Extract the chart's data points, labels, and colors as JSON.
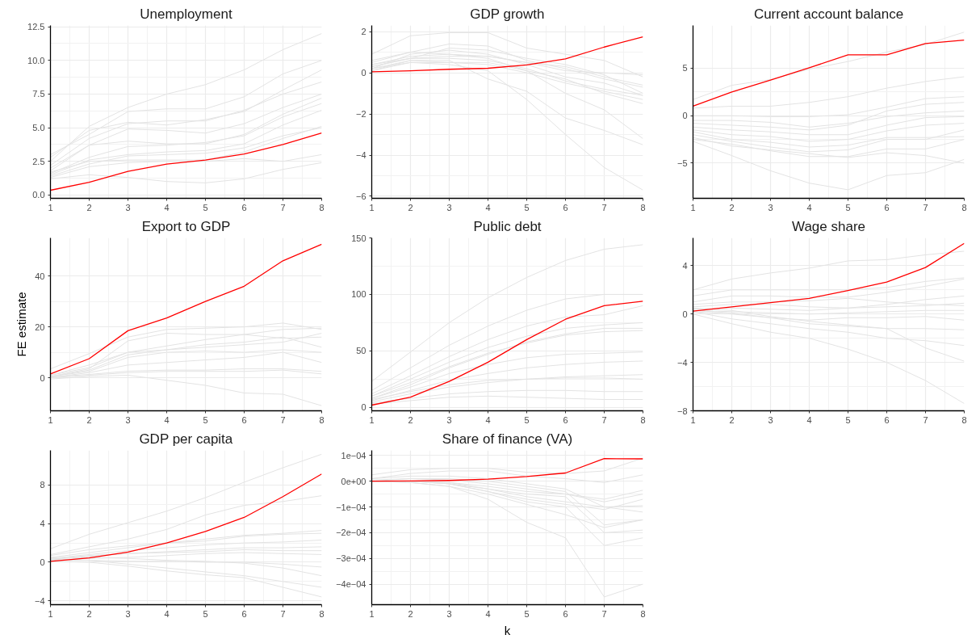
{
  "chart_data": [
    {
      "type": "line",
      "title": "Unemployment",
      "x": [
        1,
        2,
        3,
        4,
        5,
        6,
        7,
        8
      ],
      "xlim": [
        1,
        8
      ],
      "xticks": [
        1,
        2,
        3,
        4,
        5,
        6,
        7,
        8
      ],
      "ylim": [
        -0.25,
        12.6
      ],
      "yticks": [
        {
          "value": 0,
          "label": "0.0"
        },
        {
          "value": 2.5,
          "label": "2.5"
        },
        {
          "value": 5,
          "label": "5.0"
        },
        {
          "value": 7.5,
          "label": "7.5"
        },
        {
          "value": 10,
          "label": "10.0"
        },
        {
          "value": 12.5,
          "label": "12.5"
        }
      ],
      "grid": true,
      "series": [
        {
          "color": "#e3e3e3",
          "values": [
            1.7,
            2.5,
            2.6,
            2.6,
            2.6,
            3.2,
            4.2,
            5.1
          ]
        },
        {
          "color": "#e3e3e3",
          "values": [
            1.8,
            3.7,
            4.0,
            3.8,
            3.8,
            4.5,
            6.0,
            7.2
          ]
        },
        {
          "color": "#e3e3e3",
          "values": [
            2.0,
            3.7,
            4.9,
            4.8,
            4.6,
            5.3,
            6.5,
            7.5
          ]
        },
        {
          "color": "#e3e3e3",
          "values": [
            2.5,
            5.1,
            6.5,
            7.5,
            8.2,
            9.3,
            10.8,
            12.0
          ]
        },
        {
          "color": "#e3e3e3",
          "values": [
            3.0,
            4.5,
            6.2,
            6.4,
            6.4,
            7.3,
            9.0,
            10.0
          ]
        },
        {
          "color": "#e3e3e3",
          "values": [
            1.2,
            1.5,
            1.3,
            1.0,
            0.9,
            1.2,
            1.9,
            2.4
          ]
        },
        {
          "color": "#e3e3e3",
          "values": [
            1.3,
            2.1,
            2.4,
            2.5,
            2.5,
            2.7,
            2.5,
            3.0
          ]
        },
        {
          "color": "#e3e3e3",
          "values": [
            1.5,
            2.6,
            3.0,
            3.2,
            3.3,
            3.8,
            5.2,
            6.3
          ]
        },
        {
          "color": "#e3e3e3",
          "values": [
            2.2,
            4.2,
            5.3,
            5.5,
            5.5,
            6.3,
            7.5,
            8.4
          ]
        },
        {
          "color": "#e3e3e3",
          "values": [
            1.6,
            2.8,
            3.6,
            3.7,
            3.9,
            4.4,
            5.8,
            6.8
          ]
        },
        {
          "color": "#e3e3e3",
          "values": [
            1.4,
            2.3,
            2.9,
            3.0,
            3.1,
            3.5,
            4.4,
            5.0
          ]
        },
        {
          "color": "#e3e3e3",
          "values": [
            2.8,
            4.8,
            5.4,
            5.2,
            5.6,
            6.2,
            7.8,
            9.3
          ]
        },
        {
          "color": "#ff0000",
          "values": [
            0.35,
            0.95,
            1.75,
            2.3,
            2.6,
            3.05,
            3.75,
            4.6
          ]
        }
      ]
    },
    {
      "type": "line",
      "title": "GDP growth",
      "x": [
        1,
        2,
        3,
        4,
        5,
        6,
        7,
        8
      ],
      "xlim": [
        1,
        8
      ],
      "xticks": [
        1,
        2,
        3,
        4,
        5,
        6,
        7,
        8
      ],
      "ylim": [
        -6.1,
        2.3
      ],
      "yticks": [
        {
          "value": -6,
          "label": "−6"
        },
        {
          "value": -4,
          "label": "−4"
        },
        {
          "value": -2,
          "label": "−2"
        },
        0,
        2
      ],
      "grid": true,
      "series": [
        {
          "color": "#e3e3e3",
          "values": [
            0.9,
            1.8,
            1.95,
            1.95,
            1.2,
            0.9,
            0.6,
            -0.2
          ]
        },
        {
          "color": "#e3e3e3",
          "values": [
            0.5,
            1.0,
            1.4,
            1.3,
            0.6,
            0.2,
            -0.3,
            -0.7
          ]
        },
        {
          "color": "#e3e3e3",
          "values": [
            0.3,
            0.7,
            0.7,
            0.6,
            0.2,
            -0.4,
            -0.8,
            -1.1
          ]
        },
        {
          "color": "#e3e3e3",
          "values": [
            0.2,
            0.6,
            0.5,
            0.4,
            0,
            -0.5,
            -0.9,
            -1.3
          ]
        },
        {
          "color": "#e3e3e3",
          "values": [
            0.1,
            0.5,
            0.4,
            0.1,
            -1.3,
            -3.0,
            -4.6,
            -5.7
          ]
        },
        {
          "color": "#e3e3e3",
          "values": [
            0.4,
            0.8,
            0.9,
            0.7,
            0.1,
            -1.0,
            -1.8,
            -3.2
          ]
        },
        {
          "color": "#e3e3e3",
          "values": [
            0.2,
            0.9,
            1.1,
            0.9,
            0.4,
            -0.2,
            -0.5,
            -1.1
          ]
        },
        {
          "color": "#e3e3e3",
          "values": [
            0.6,
            1.0,
            0.9,
            0.8,
            0.5,
            0.1,
            0,
            -0.1
          ]
        },
        {
          "color": "#e3e3e3",
          "values": [
            0.1,
            0.6,
            0.6,
            -0.3,
            -0.9,
            -2.2,
            -2.8,
            -3.5
          ]
        },
        {
          "color": "#e3e3e3",
          "values": [
            0.3,
            0.7,
            0.8,
            0.8,
            0.5,
            0.3,
            -0.2,
            -0.6
          ]
        },
        {
          "color": "#e3e3e3",
          "values": [
            0.2,
            0.5,
            0.5,
            0.5,
            0.1,
            -0.3,
            -1.0,
            -1.5
          ]
        },
        {
          "color": "#e3e3e3",
          "values": [
            0.4,
            0.7,
            1.2,
            1.1,
            0.7,
            0.4,
            -0.1,
            -1.0
          ]
        },
        {
          "color": "#ff0000",
          "values": [
            0.05,
            0.1,
            0.17,
            0.22,
            0.38,
            0.68,
            1.25,
            1.75
          ]
        }
      ]
    },
    {
      "type": "line",
      "title": "Current account balance",
      "x": [
        1,
        2,
        3,
        4,
        5,
        6,
        7,
        8
      ],
      "xlim": [
        1,
        8
      ],
      "xticks": [
        1,
        2,
        3,
        4,
        5,
        6,
        7,
        8
      ],
      "ylim": [
        -8.7,
        9.5
      ],
      "yticks": [
        {
          "value": -5,
          "label": "−5"
        },
        0,
        5
      ],
      "grid": true,
      "series": [
        {
          "color": "#e3e3e3",
          "values": [
            1.7,
            3.2,
            3.8,
            4.9,
            5.7,
            6.7,
            7.5,
            8.8
          ]
        },
        {
          "color": "#e3e3e3",
          "values": [
            0.8,
            1.0,
            1.0,
            1.4,
            2.0,
            2.9,
            3.6,
            4.1
          ]
        },
        {
          "color": "#e3e3e3",
          "values": [
            0,
            0,
            -0.1,
            -0.1,
            0.1,
            0.9,
            1.8,
            2.0
          ]
        },
        {
          "color": "#e3e3e3",
          "values": [
            -0.5,
            -0.5,
            -0.7,
            -1.2,
            -0.8,
            -0.1,
            0.3,
            0.5
          ]
        },
        {
          "color": "#e3e3e3",
          "values": [
            -0.8,
            -1.0,
            -1.2,
            -1.5,
            -1.0,
            0.5,
            1.2,
            1.4
          ]
        },
        {
          "color": "#e3e3e3",
          "values": [
            -1.2,
            -1.5,
            -1.7,
            -2.0,
            -2.0,
            -1.0,
            -0.2,
            -0.1
          ]
        },
        {
          "color": "#e3e3e3",
          "values": [
            -1.7,
            -2.5,
            -2.8,
            -3.3,
            -3.1,
            -2.3,
            -2.3,
            -2.2
          ]
        },
        {
          "color": "#e3e3e3",
          "values": [
            -2.0,
            -2.7,
            -3.3,
            -3.8,
            -3.6,
            -2.5,
            -2.5,
            -1.5
          ]
        },
        {
          "color": "#e3e3e3",
          "values": [
            -2.5,
            -3.0,
            -3.7,
            -4.3,
            -4.3,
            -3.5,
            -3.5,
            -2.5
          ]
        },
        {
          "color": "#e3e3e3",
          "values": [
            -2.7,
            -4.2,
            -5.8,
            -7.1,
            -7.8,
            -6.3,
            -6.0,
            -4.6
          ]
        },
        {
          "color": "#e3e3e3",
          "values": [
            -2.3,
            -3.2,
            -3.6,
            -4.0,
            -4.4,
            -3.9,
            -4.2,
            -5.0
          ]
        },
        {
          "color": "#e3e3e3",
          "values": [
            -1.5,
            -2.0,
            -2.2,
            -2.7,
            -2.5,
            -1.6,
            -1.0,
            -0.8
          ]
        },
        {
          "color": "#ff0000",
          "values": [
            1.0,
            2.5,
            3.75,
            5.05,
            6.4,
            6.4,
            7.6,
            7.95
          ]
        }
      ]
    },
    {
      "type": "line",
      "title": "Export to GDP",
      "ylabel": "FE estimate",
      "x": [
        1,
        2,
        3,
        4,
        5,
        6,
        7,
        8
      ],
      "xlim": [
        1,
        8
      ],
      "xticks": [
        1,
        2,
        3,
        4,
        5,
        6,
        7,
        8
      ],
      "ylim": [
        -13,
        55
      ],
      "yticks": [
        0,
        20,
        40
      ],
      "grid": true,
      "series": [
        {
          "color": "#e3e3e3",
          "values": [
            3.5,
            9.5,
            16,
            19,
            19.5,
            20,
            21.5,
            19
          ]
        },
        {
          "color": "#e3e3e3",
          "values": [
            1,
            5,
            10,
            12.5,
            15,
            17,
            19,
            19.5
          ]
        },
        {
          "color": "#e3e3e3",
          "values": [
            0.5,
            3,
            9,
            11,
            13,
            14,
            16,
            12
          ]
        },
        {
          "color": "#e3e3e3",
          "values": [
            0.5,
            2.5,
            8,
            10,
            10.5,
            10,
            11,
            10
          ]
        },
        {
          "color": "#e3e3e3",
          "values": [
            0.1,
            2,
            5,
            6,
            7,
            8,
            10,
            6
          ]
        },
        {
          "color": "#e3e3e3",
          "values": [
            0,
            1,
            2,
            2.5,
            2.5,
            2.5,
            3,
            1.5
          ]
        },
        {
          "color": "#e3e3e3",
          "values": [
            -0.5,
            0.5,
            1,
            -1,
            -3,
            -6,
            -6.5,
            -11
          ]
        },
        {
          "color": "#e3e3e3",
          "values": [
            0.5,
            3.5,
            14.5,
            17.5,
            17,
            17,
            15.5,
            16
          ]
        },
        {
          "color": "#e3e3e3",
          "values": [
            0.3,
            1.3,
            2.6,
            3,
            3,
            3.5,
            3.5,
            2.5
          ]
        },
        {
          "color": "#e3e3e3",
          "values": [
            1,
            4,
            10,
            11,
            12,
            13,
            14,
            17.5
          ]
        },
        {
          "color": "#ff0000",
          "values": [
            1.5,
            7.5,
            18.5,
            23.5,
            30,
            36,
            46,
            52.5
          ]
        }
      ]
    },
    {
      "type": "line",
      "title": "Public debt",
      "x": [
        1,
        2,
        3,
        4,
        5,
        6,
        7,
        8
      ],
      "xlim": [
        1,
        8
      ],
      "xticks": [
        1,
        2,
        3,
        4,
        5,
        6,
        7,
        8
      ],
      "ylim": [
        -3,
        150
      ],
      "yticks": [
        0,
        50,
        100,
        150
      ],
      "grid": true,
      "series": [
        {
          "color": "#e3e3e3",
          "values": [
            23,
            49,
            75,
            97,
            115,
            130,
            140,
            144
          ]
        },
        {
          "color": "#e3e3e3",
          "values": [
            15,
            35,
            55,
            72,
            86,
            96,
            100,
            100
          ]
        },
        {
          "color": "#e3e3e3",
          "values": [
            12,
            28,
            45,
            60,
            72,
            80,
            82,
            90
          ]
        },
        {
          "color": "#e3e3e3",
          "values": [
            10,
            25,
            40,
            53,
            63,
            70,
            73,
            75
          ]
        },
        {
          "color": "#e3e3e3",
          "values": [
            8,
            20,
            35,
            47,
            58,
            65,
            70,
            70
          ]
        },
        {
          "color": "#e3e3e3",
          "values": [
            8,
            18,
            30,
            38,
            44,
            47,
            48,
            49
          ]
        },
        {
          "color": "#e3e3e3",
          "values": [
            6,
            15,
            24,
            30,
            35,
            38,
            40,
            41
          ]
        },
        {
          "color": "#e3e3e3",
          "values": [
            5,
            12,
            18,
            22,
            25,
            27,
            28,
            29
          ]
        },
        {
          "color": "#e3e3e3",
          "values": [
            4,
            8,
            12,
            14,
            15,
            15,
            14,
            14
          ]
        },
        {
          "color": "#e3e3e3",
          "values": [
            3,
            6,
            9,
            10,
            9,
            8,
            7,
            7
          ]
        },
        {
          "color": "#e3e3e3",
          "values": [
            10,
            22,
            36,
            48,
            57,
            64,
            67,
            68
          ]
        },
        {
          "color": "#e3e3e3",
          "values": [
            7,
            14,
            20,
            24,
            25,
            26,
            26,
            25
          ]
        },
        {
          "color": "#ff0000",
          "values": [
            2,
            9,
            23,
            40,
            60,
            78,
            90,
            94
          ]
        }
      ]
    },
    {
      "type": "line",
      "title": "Wage share",
      "x": [
        1,
        2,
        3,
        4,
        5,
        6,
        7,
        8
      ],
      "xlim": [
        1,
        8
      ],
      "xticks": [
        1,
        2,
        3,
        4,
        5,
        6,
        7,
        8
      ],
      "ylim": [
        -8,
        6.3
      ],
      "yticks": [
        {
          "value": -8,
          "label": "−8"
        },
        {
          "value": -4,
          "label": "−4"
        },
        0,
        4
      ],
      "grid": true,
      "series": [
        {
          "color": "#e3e3e3",
          "values": [
            2.0,
            2.9,
            3.4,
            3.8,
            4.4,
            4.5,
            4.9,
            5.2
          ]
        },
        {
          "color": "#e3e3e3",
          "values": [
            1.5,
            2.0,
            2.0,
            2.0,
            2.0,
            2.2,
            2.7,
            3.0
          ]
        },
        {
          "color": "#e3e3e3",
          "values": [
            1.0,
            1.5,
            1.5,
            1.4,
            1.4,
            1.8,
            2.3,
            2.9
          ]
        },
        {
          "color": "#e3e3e3",
          "values": [
            0.6,
            0.8,
            0.8,
            0.6,
            0.5,
            0.8,
            1.2,
            1.5
          ]
        },
        {
          "color": "#e3e3e3",
          "values": [
            0.4,
            0.5,
            0.4,
            0.3,
            0.5,
            0.6,
            0.7,
            0.9
          ]
        },
        {
          "color": "#e3e3e3",
          "values": [
            0.3,
            0.2,
            0.1,
            0,
            0.1,
            0.2,
            0.3,
            0.3
          ]
        },
        {
          "color": "#e3e3e3",
          "values": [
            0.2,
            0,
            -0.3,
            -0.5,
            -0.3,
            -0.3,
            -0.2,
            -0.5
          ]
        },
        {
          "color": "#e3e3e3",
          "values": [
            0,
            -0.8,
            -1.5,
            -2.0,
            -2.9,
            -4.0,
            -5.5,
            -7.4
          ]
        },
        {
          "color": "#e3e3e3",
          "values": [
            0.2,
            -0.4,
            -0.8,
            -1.2,
            -1.5,
            -2.0,
            -2.2,
            -2.6
          ]
        },
        {
          "color": "#e3e3e3",
          "values": [
            0.5,
            0.3,
            -0.2,
            -0.6,
            -0.9,
            -1.2,
            -2.8,
            -3.9
          ]
        },
        {
          "color": "#e3e3e3",
          "values": [
            0.8,
            1.0,
            1.0,
            1.1,
            1.3,
            1.0,
            0.8,
            0.7
          ]
        },
        {
          "color": "#e3e3e3",
          "values": [
            0.3,
            0.1,
            -0.3,
            -0.8,
            -1.0,
            -1.2,
            -1.2,
            -1.3
          ]
        },
        {
          "color": "#ff0000",
          "values": [
            0.25,
            0.6,
            0.95,
            1.3,
            1.95,
            2.65,
            3.85,
            5.85
          ]
        }
      ]
    },
    {
      "type": "line",
      "title": "GDP per capita",
      "x": [
        1,
        2,
        3,
        4,
        5,
        6,
        7,
        8
      ],
      "xlim": [
        1,
        8
      ],
      "xticks": [
        1,
        2,
        3,
        4,
        5,
        6,
        7,
        8
      ],
      "ylim": [
        -4.4,
        11.6
      ],
      "yticks": [
        {
          "value": -4,
          "label": "−4"
        },
        0,
        4,
        8
      ],
      "grid": true,
      "series": [
        {
          "color": "#e3e3e3",
          "values": [
            1.4,
            2.9,
            4.1,
            5.3,
            6.7,
            8.3,
            9.8,
            11.2
          ]
        },
        {
          "color": "#e3e3e3",
          "values": [
            0.8,
            1.6,
            2.4,
            3.4,
            4.9,
            5.9,
            6.3,
            6.9
          ]
        },
        {
          "color": "#e3e3e3",
          "values": [
            0.5,
            1.0,
            1.5,
            2.0,
            2.4,
            2.8,
            3.0,
            3.3
          ]
        },
        {
          "color": "#e3e3e3",
          "values": [
            0.4,
            0.8,
            1.2,
            1.5,
            1.8,
            2.0,
            2.1,
            2.3
          ]
        },
        {
          "color": "#e3e3e3",
          "values": [
            0.3,
            0.6,
            0.9,
            1.1,
            1.3,
            1.5,
            1.5,
            1.6
          ]
        },
        {
          "color": "#e3e3e3",
          "values": [
            0.2,
            0.4,
            0.5,
            0.7,
            0.9,
            1.0,
            0.9,
            0.8
          ]
        },
        {
          "color": "#e3e3e3",
          "values": [
            0.2,
            0.2,
            0.1,
            0.1,
            0,
            0,
            -0.2,
            -0.5
          ]
        },
        {
          "color": "#e3e3e3",
          "values": [
            0.1,
            0,
            -0.4,
            -0.9,
            -1.3,
            -1.6,
            -2.6,
            -3.6
          ]
        },
        {
          "color": "#e3e3e3",
          "values": [
            0.3,
            0.2,
            -0.2,
            -0.6,
            -1.0,
            -1.4,
            -2.0,
            -2.6
          ]
        },
        {
          "color": "#e3e3e3",
          "values": [
            0.4,
            0.5,
            0.4,
            0.2,
            0.1,
            -0.1,
            -0.6,
            -1.4
          ]
        },
        {
          "color": "#e3e3e3",
          "values": [
            0.7,
            1.3,
            1.7,
            2.0,
            2.2,
            2.7,
            2.9,
            3.0
          ]
        },
        {
          "color": "#e3e3e3",
          "values": [
            0.3,
            0.7,
            0.9,
            1.0,
            1.1,
            1.3,
            1.2,
            1.2
          ]
        },
        {
          "color": "#ff0000",
          "values": [
            0.1,
            0.45,
            1.05,
            2.0,
            3.2,
            4.65,
            6.8,
            9.15
          ]
        }
      ]
    },
    {
      "type": "line",
      "title": "Share of finance (VA)",
      "xlabel": "k",
      "x": [
        1,
        2,
        3,
        4,
        5,
        6,
        7,
        8
      ],
      "xlim": [
        1,
        8
      ],
      "xticks": [
        1,
        2,
        3,
        4,
        5,
        6,
        7,
        8
      ],
      "ylim": [
        -0.00048,
        0.00012
      ],
      "yticks": [
        {
          "value": -0.0004,
          "label": "−4e−04"
        },
        {
          "value": -0.0003,
          "label": "−3e−04"
        },
        {
          "value": -0.0002,
          "label": "−2e−04"
        },
        {
          "value": -0.0001,
          "label": "−1e−04"
        },
        {
          "value": 0,
          "label": "0e+00"
        },
        {
          "value": 0.0001,
          "label": "1e−04"
        }
      ],
      "grid": true,
      "series": [
        {
          "color": "#e3e3e3",
          "values": [
            2.5e-05,
            4.5e-05,
            5e-05,
            5e-05,
            3.5e-05,
            3e-05,
            4e-05,
            9e-05
          ]
        },
        {
          "color": "#e3e3e3",
          "values": [
            1e-05,
            3e-05,
            4e-05,
            4e-05,
            2e-05,
            1e-05,
            -5e-06,
            2.5e-05
          ]
        },
        {
          "color": "#e3e3e3",
          "values": [
            0,
            1e-05,
            5e-06,
            -1e-05,
            -3e-05,
            -5e-05,
            -7e-05,
            -3.5e-05
          ]
        },
        {
          "color": "#e3e3e3",
          "values": [
            0,
            0,
            -5e-06,
            -3e-05,
            -6e-05,
            -8e-05,
            -0.0001,
            -9.5e-05
          ]
        },
        {
          "color": "#e3e3e3",
          "values": [
            0,
            0,
            -1e-05,
            -4e-05,
            -7e-05,
            -9e-05,
            -0.00011,
            -7e-05
          ]
        },
        {
          "color": "#e3e3e3",
          "values": [
            0,
            -5e-06,
            -2e-05,
            -5e-05,
            -9e-05,
            -0.00013,
            -0.00018,
            -0.00015
          ]
        },
        {
          "color": "#e3e3e3",
          "values": [
            0,
            -5e-06,
            -2e-05,
            -7e-05,
            -0.00016,
            -0.00022,
            -0.00045,
            -0.0004
          ]
        },
        {
          "color": "#e3e3e3",
          "values": [
            0,
            0,
            -1e-05,
            -3e-05,
            -5e-05,
            -6e-05,
            -0.0002,
            -0.00019
          ]
        },
        {
          "color": "#e3e3e3",
          "values": [
            0,
            0,
            -1e-05,
            -4e-05,
            -8e-05,
            -0.0001,
            -0.00025,
            -0.00022
          ]
        },
        {
          "color": "#e3e3e3",
          "values": [
            1e-05,
            2e-05,
            2e-05,
            1e-05,
            -1e-05,
            -3e-05,
            -0.0001,
            -0.00012
          ]
        },
        {
          "color": "#e3e3e3",
          "values": [
            0,
            0,
            -5e-06,
            -2e-05,
            -4e-05,
            -5e-05,
            -8e-05,
            -5e-05
          ]
        },
        {
          "color": "#e3e3e3",
          "values": [
            5e-06,
            1e-05,
            1e-05,
            0,
            -2e-05,
            -4e-05,
            -0.00017,
            -0.00015
          ]
        },
        {
          "color": "#ff0000",
          "values": [
            0,
            1e-06,
            3e-06,
            8e-06,
            1.8e-05,
            3.2e-05,
            8.8e-05,
            8.7e-05
          ]
        }
      ]
    }
  ]
}
